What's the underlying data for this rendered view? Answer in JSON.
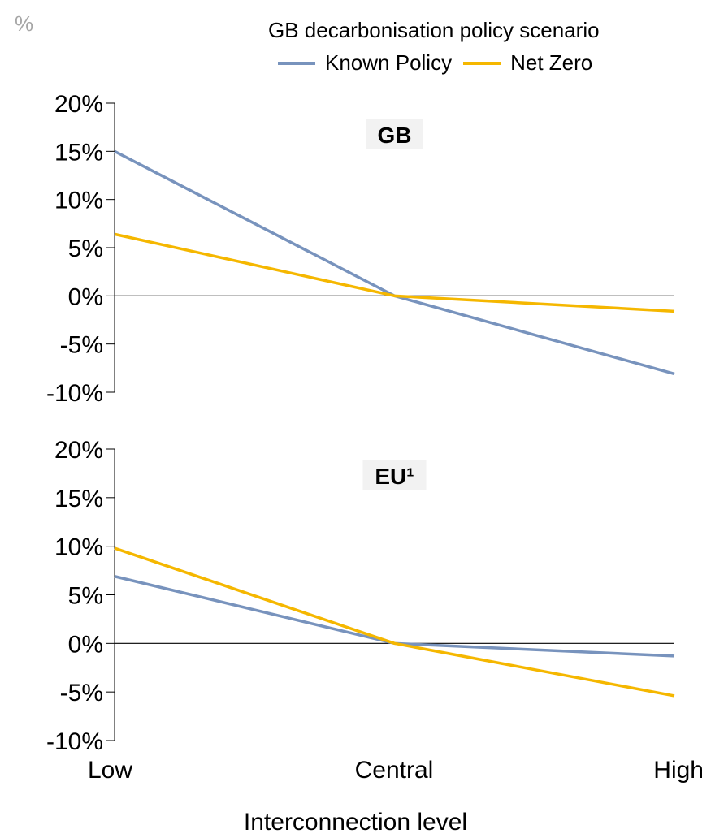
{
  "unit_label": "%",
  "legend": {
    "title": "GB decarbonisation policy scenario",
    "items": [
      {
        "name": "Known Policy",
        "color": "#7893bd"
      },
      {
        "name": "Net Zero",
        "color": "#f5b700"
      }
    ]
  },
  "chart_data": [
    {
      "type": "line",
      "title": "GB",
      "categories": [
        "Low",
        "Central",
        "High"
      ],
      "xlabel": "Interconnection level",
      "ylabel": "%",
      "ylim": [
        -10,
        20
      ],
      "yticks": [
        "20%",
        "15%",
        "10%",
        "5%",
        "0%",
        "-5%",
        "-10%"
      ],
      "grid": false,
      "series": [
        {
          "name": "Known Policy",
          "color": "#7893bd",
          "values": [
            15.0,
            0.0,
            -8.1
          ]
        },
        {
          "name": "Net Zero",
          "color": "#f5b700",
          "values": [
            6.4,
            0.0,
            -1.6
          ]
        }
      ]
    },
    {
      "type": "line",
      "title": "EU¹",
      "categories": [
        "Low",
        "Central",
        "High"
      ],
      "xlabel": "Interconnection level",
      "ylabel": "%",
      "ylim": [
        -10,
        20
      ],
      "yticks": [
        "20%",
        "15%",
        "10%",
        "5%",
        "0%",
        "-5%",
        "-10%"
      ],
      "grid": false,
      "series": [
        {
          "name": "Known Policy",
          "color": "#7893bd",
          "values": [
            6.9,
            0.0,
            -1.3
          ]
        },
        {
          "name": "Net Zero",
          "color": "#f5b700",
          "values": [
            9.8,
            0.0,
            -5.4
          ]
        }
      ]
    }
  ]
}
